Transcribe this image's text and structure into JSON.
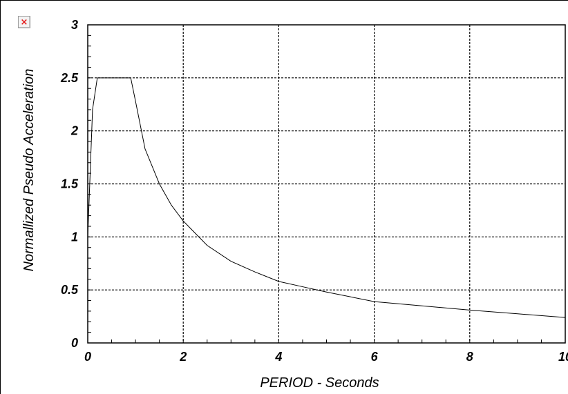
{
  "icons": {
    "broken_image": "broken-image-icon",
    "broken_image_glyph": "×"
  },
  "chart_data": {
    "type": "line",
    "xlabel": "PERIOD - Seconds",
    "ylabel": "Normallized Pseudo Acceleration",
    "xlim": [
      0,
      10
    ],
    "ylim": [
      0,
      3
    ],
    "x_ticks": [
      0,
      2,
      4,
      6,
      8,
      10
    ],
    "x_tick_labels": [
      "0",
      "2",
      "4",
      "6",
      "8",
      "10"
    ],
    "y_ticks": [
      0,
      0.5,
      1,
      1.5,
      2,
      2.5,
      3
    ],
    "y_tick_labels": [
      "0",
      "0.5",
      "1",
      "1.5",
      "2",
      "2.5",
      "3"
    ],
    "grid": true,
    "line_color": "#000000",
    "series": [
      {
        "points": [
          [
            0,
            1.0
          ],
          [
            0.05,
            1.6
          ],
          [
            0.1,
            2.2
          ],
          [
            0.2,
            2.5
          ],
          [
            0.9,
            2.5
          ],
          [
            1.0,
            2.28
          ],
          [
            1.2,
            1.83
          ],
          [
            1.5,
            1.5
          ],
          [
            1.75,
            1.3
          ],
          [
            2.0,
            1.15
          ],
          [
            2.5,
            0.92
          ],
          [
            3.0,
            0.77
          ],
          [
            3.5,
            0.67
          ],
          [
            4.0,
            0.58
          ],
          [
            4.5,
            0.53
          ],
          [
            5.0,
            0.48
          ],
          [
            6.0,
            0.39
          ],
          [
            7.0,
            0.35
          ],
          [
            8.0,
            0.31
          ],
          [
            9.0,
            0.275
          ],
          [
            10.0,
            0.24
          ]
        ]
      }
    ]
  }
}
